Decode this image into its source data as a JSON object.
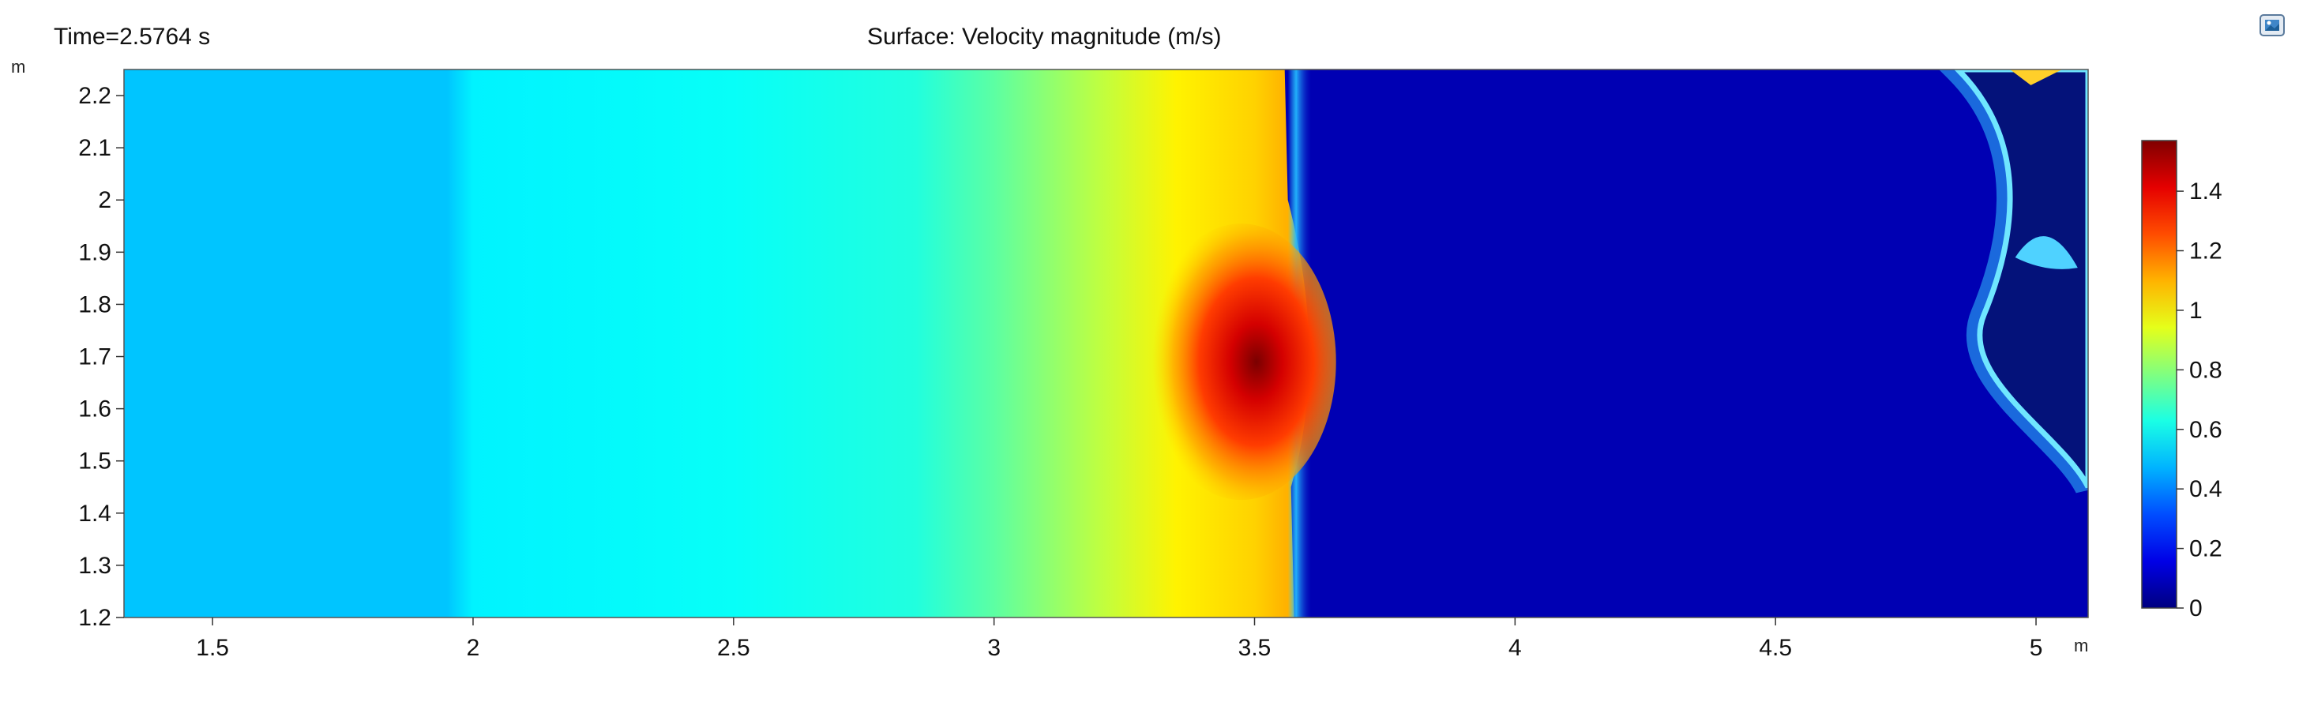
{
  "header": {
    "time_label": "Time=2.5764 s",
    "title": "Surface: Velocity magnitude (m/s)"
  },
  "toolbar": {
    "export_icon": "image-export-icon"
  },
  "chart_data": {
    "type": "heatmap",
    "title": "Surface: Velocity magnitude (m/s)",
    "time_label": "Time=2.5764 s",
    "x_unit": "m",
    "y_unit": "m",
    "xlim": [
      1.33,
      5.1
    ],
    "ylim": [
      1.2,
      2.25
    ],
    "x_ticks": [
      1.5,
      2,
      2.5,
      3,
      3.5,
      4,
      4.5,
      5
    ],
    "x_tick_labels": [
      "1.5",
      "2",
      "2.5",
      "3",
      "3.5",
      "4",
      "4.5",
      "5"
    ],
    "y_ticks": [
      1.2,
      1.3,
      1.4,
      1.5,
      1.6,
      1.7,
      1.8,
      1.9,
      2,
      2.1,
      2.2
    ],
    "y_tick_labels": [
      "1.2",
      "1.3",
      "1.4",
      "1.5",
      "1.6",
      "1.7",
      "1.8",
      "1.9",
      "2",
      "2.1",
      "2.2"
    ],
    "colorbar": {
      "colormap": "jet",
      "range": [
        0,
        1.57
      ],
      "ticks": [
        0,
        0.2,
        0.4,
        0.6,
        0.8,
        1,
        1.2,
        1.4
      ],
      "tick_labels": [
        "0",
        "0.2",
        "0.4",
        "0.6",
        "0.8",
        "1",
        "1.2",
        "1.4"
      ]
    },
    "field_profile": {
      "x": [
        1.33,
        1.95,
        2.0,
        2.5,
        2.85,
        3.0,
        3.2,
        3.35,
        3.5,
        3.56
      ],
      "value": [
        0.5,
        0.5,
        0.57,
        0.6,
        0.64,
        0.73,
        0.88,
        1.0,
        1.05,
        1.1
      ]
    },
    "peak": {
      "x": 3.52,
      "y": 1.69,
      "value": 1.5
    },
    "front_x": 3.57,
    "right_region_value": 0.08,
    "grid": false
  }
}
